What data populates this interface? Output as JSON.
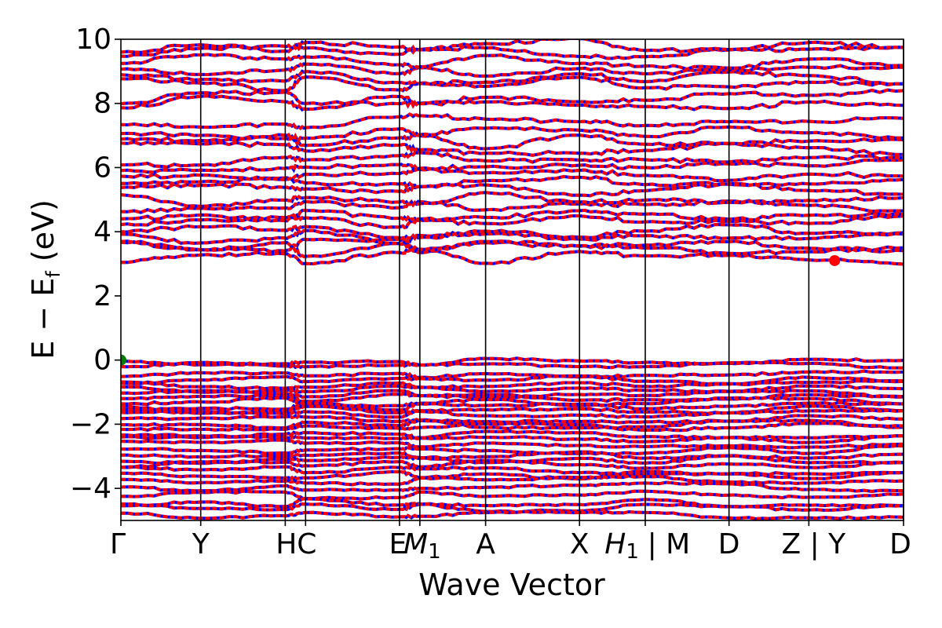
{
  "chart_data": {
    "type": "line",
    "xlabel": "Wave Vector",
    "ylabel": "E − E",
    "ylabel_sub": "f",
    "ylabel_unit": " (eV)",
    "ylim": [
      -5,
      10
    ],
    "yticks": [
      -4,
      -2,
      0,
      2,
      4,
      6,
      8,
      10
    ],
    "ytick_labels": [
      "−4",
      "−2",
      "0",
      "2",
      "4",
      "6",
      "8",
      "10"
    ],
    "kpoints": [
      {
        "label": "Γ",
        "x": 0.0
      },
      {
        "label": "Y",
        "x": 0.102
      },
      {
        "label": "H",
        "x": 0.21
      },
      {
        "label": "C",
        "x": 0.236
      },
      {
        "label": "E",
        "x": 0.356
      },
      {
        "label": "M",
        "sub": "1",
        "x": 0.382
      },
      {
        "label": "A",
        "x": 0.466
      },
      {
        "label": "X",
        "x": 0.586
      },
      {
        "label": "H",
        "sub": "1",
        "x": 0.67
      },
      {
        "label": "M",
        "x": 0.777
      },
      {
        "label": "D",
        "x": 0.879
      },
      {
        "label": "Z",
        "x": 1.0
      }
    ],
    "segment_breaks": [
      {
        "x": 0.67,
        "tick": "|"
      },
      {
        "x": 0.879,
        "tick": "|"
      }
    ],
    "xlim": [
      0,
      1.0
    ],
    "series": [
      {
        "color": "#0000ff",
        "style": "solid"
      },
      {
        "color": "#ff0000",
        "style": "dashed"
      }
    ],
    "valence_bands": [
      -0.05,
      -0.18,
      -0.45,
      -0.62,
      -0.78,
      -0.9,
      -1.05,
      -1.18,
      -1.3,
      -1.45,
      -1.55,
      -1.7,
      -1.85,
      -2.0,
      -2.1,
      -2.3,
      -2.45,
      -2.6,
      -2.8,
      -2.95,
      -3.1,
      -3.25,
      -3.45,
      -3.6,
      -3.75,
      -3.95,
      -4.2,
      -4.45,
      -4.6,
      -4.85
    ],
    "conduction_bands": [
      3.2,
      3.45,
      3.55,
      3.85,
      4.0,
      4.3,
      4.55,
      4.85,
      5.0,
      5.3,
      5.5,
      5.8,
      6.05,
      6.3,
      6.6,
      6.8,
      7.05,
      7.4,
      8.0,
      8.2,
      8.6,
      8.8,
      9.05,
      9.3,
      9.6,
      9.8
    ],
    "markers": [
      {
        "label": "VBM",
        "x": 0.0,
        "y": 0.0,
        "color": "#008000"
      },
      {
        "label": "CBM",
        "x": 0.912,
        "y": 3.1,
        "color": "#ff0000"
      }
    ]
  }
}
